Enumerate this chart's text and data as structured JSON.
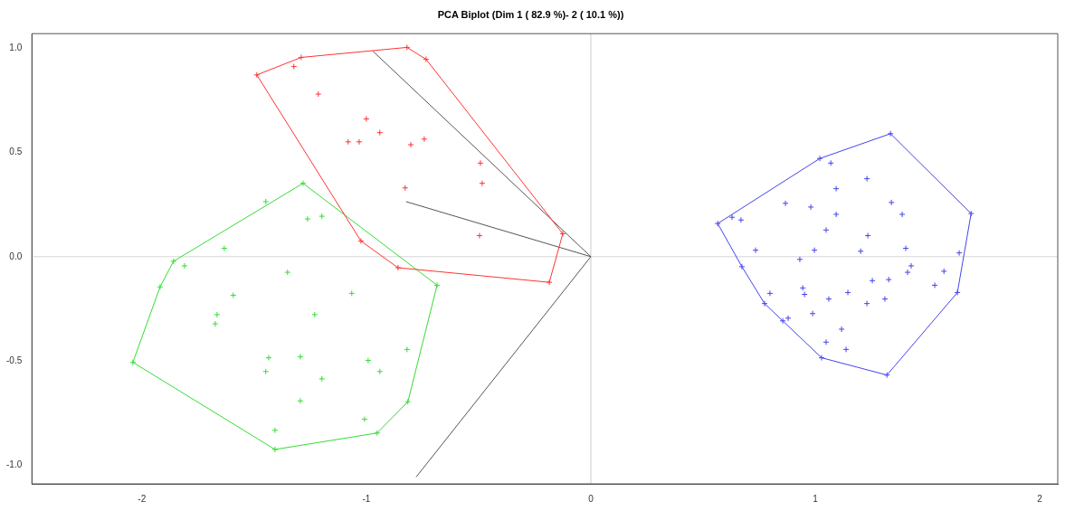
{
  "chart_data": {
    "type": "scatter",
    "title": "PCA Biplot (Dim 1 ( 82.9 %)- 2 ( 10.1 %))",
    "xlim": [
      -2.49,
      2.08
    ],
    "ylim": [
      -1.09,
      1.07
    ],
    "xticks": [
      {
        "value": -2,
        "label": "-2"
      },
      {
        "value": -1,
        "label": "-1"
      },
      {
        "value": 0,
        "label": "0"
      },
      {
        "value": 1,
        "label": "1"
      },
      {
        "value": 2,
        "label": "2"
      }
    ],
    "yticks": [
      {
        "value": -1,
        "label": "-1.0"
      },
      {
        "value": -0.5,
        "label": "-0.5"
      },
      {
        "value": 0,
        "label": "0.0"
      },
      {
        "value": 0.5,
        "label": "0.5"
      },
      {
        "value": 1,
        "label": "1.0"
      }
    ],
    "grid": false,
    "legend": false,
    "ref_lines": [
      {
        "axis": "x",
        "value": 0,
        "color": "#cccccc"
      },
      {
        "axis": "y",
        "value": 0,
        "color": "#d6d6d6"
      }
    ],
    "series": [
      {
        "type": "scatter",
        "marker": "cross",
        "color": "#ff3333",
        "x": [
          -1.488,
          -1.29,
          -1.323,
          -1.214,
          -1.0,
          -1.081,
          -1.032,
          -0.94,
          -0.802,
          -0.742,
          -0.492,
          -0.484,
          -0.827,
          -0.496,
          -1.024,
          -0.859,
          -0.125,
          -0.185,
          -0.819,
          -0.734
        ],
        "values": [
          0.872,
          0.956,
          0.912,
          0.78,
          0.661,
          0.551,
          0.551,
          0.595,
          0.537,
          0.564,
          0.449,
          0.352,
          0.33,
          0.101,
          0.075,
          -0.053,
          0.11,
          -0.123,
          1.004,
          0.947
        ]
      },
      {
        "type": "scatter",
        "marker": "cross",
        "color": "#33dd33",
        "x": [
          -1.282,
          -1.448,
          -1.262,
          -1.198,
          -1.633,
          -1.859,
          -1.81,
          -1.919,
          -1.351,
          -1.593,
          -1.665,
          -1.673,
          -1.23,
          -1.065,
          -0.685,
          -2.04,
          -1.435,
          -1.448,
          -1.294,
          -1.198,
          -0.992,
          -0.94,
          -0.819,
          -1.294,
          -1.008,
          -0.815,
          -0.952,
          -1.407,
          -1.407
        ],
        "values": [
          0.352,
          0.264,
          0.181,
          0.194,
          0.04,
          -0.022,
          -0.044,
          -0.145,
          -0.075,
          -0.185,
          -0.278,
          -0.322,
          -0.278,
          -0.176,
          -0.137,
          -0.507,
          -0.485,
          -0.551,
          -0.48,
          -0.586,
          -0.498,
          -0.551,
          -0.445,
          -0.692,
          -0.78,
          -0.696,
          -0.846,
          -0.833,
          -0.925
        ]
      },
      {
        "type": "scatter",
        "marker": "cross",
        "color": "#4444ee",
        "x": [
          1.335,
          1.02,
          1.069,
          1.23,
          1.093,
          0.867,
          0.98,
          1.339,
          1.387,
          1.093,
          1.694,
          0.565,
          0.629,
          0.669,
          1.048,
          1.234,
          0.734,
          0.996,
          1.202,
          1.403,
          0.931,
          1.641,
          0.673,
          1.427,
          1.411,
          1.573,
          1.532,
          1.254,
          1.327,
          0.798,
          0.944,
          0.952,
          1.06,
          1.145,
          1.23,
          1.31,
          1.633,
          0.774,
          0.879,
          0.855,
          0.988,
          1.117,
          1.048,
          1.137,
          1.028,
          1.319
        ],
        "values": [
          0.59,
          0.471,
          0.449,
          0.374,
          0.326,
          0.256,
          0.238,
          0.26,
          0.203,
          0.203,
          0.207,
          0.159,
          0.189,
          0.176,
          0.128,
          0.101,
          0.031,
          0.031,
          0.026,
          0.04,
          -0.013,
          0.018,
          -0.048,
          -0.044,
          -0.075,
          -0.07,
          -0.137,
          -0.115,
          -0.11,
          -0.176,
          -0.15,
          -0.181,
          -0.203,
          -0.172,
          -0.225,
          -0.203,
          -0.172,
          -0.225,
          -0.295,
          -0.308,
          -0.273,
          -0.348,
          -0.41,
          -0.445,
          -0.485,
          -0.568
        ]
      },
      {
        "type": "line",
        "marker": "none",
        "color": "#ff3333",
        "x": [
          -1.488,
          -1.29,
          -0.819,
          -0.734,
          -0.125
        ],
        "values": [
          0.872,
          0.956,
          1.004,
          0.947,
          0.11
        ]
      },
      {
        "type": "line",
        "marker": "none",
        "color": "#ff3333",
        "x": [
          -1.488,
          -1.024,
          -0.859,
          -0.185,
          -0.125
        ],
        "values": [
          0.872,
          0.075,
          -0.053,
          -0.123,
          0.11
        ]
      },
      {
        "type": "line",
        "marker": "none",
        "color": "#33dd33",
        "x": [
          -2.04,
          -1.919,
          -1.859,
          -1.282,
          -0.685
        ],
        "values": [
          -0.507,
          -0.145,
          -0.022,
          0.352,
          -0.137
        ]
      },
      {
        "type": "line",
        "marker": "none",
        "color": "#33dd33",
        "x": [
          -2.04,
          -1.407,
          -0.952,
          -0.815,
          -0.685
        ],
        "values": [
          -0.507,
          -0.925,
          -0.846,
          -0.696,
          -0.137
        ]
      },
      {
        "type": "line",
        "marker": "none",
        "color": "#4444ee",
        "x": [
          0.565,
          1.02,
          1.335,
          1.694
        ],
        "values": [
          0.159,
          0.471,
          0.59,
          0.207
        ]
      },
      {
        "type": "line",
        "marker": "none",
        "color": "#4444ee",
        "x": [
          0.565,
          0.673,
          0.774,
          0.855,
          1.028,
          1.319,
          1.633,
          1.694
        ],
        "values": [
          0.159,
          -0.048,
          -0.225,
          -0.308,
          -0.485,
          -0.568,
          -0.172,
          0.207
        ]
      },
      {
        "type": "line",
        "marker": "none",
        "color": "#555555",
        "x": [
          0,
          -0.972
        ],
        "values": [
          0,
          0.987
        ]
      },
      {
        "type": "line",
        "marker": "none",
        "color": "#555555",
        "x": [
          0,
          -0.823
        ],
        "values": [
          0,
          0.264
        ]
      },
      {
        "type": "line",
        "marker": "none",
        "color": "#555555",
        "x": [
          0,
          -0.778
        ],
        "values": [
          0,
          -1.057
        ]
      }
    ]
  }
}
